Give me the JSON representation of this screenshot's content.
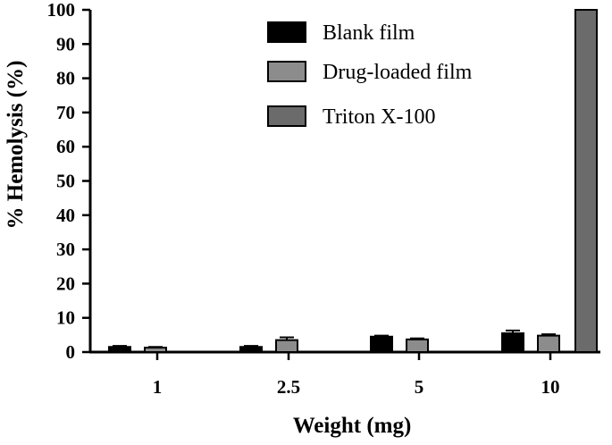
{
  "chart_data": {
    "type": "bar",
    "title": "",
    "xlabel": "Weight (mg)",
    "ylabel": "% Hemolysis (%)",
    "ylim": [
      0,
      100
    ],
    "yticks": [
      0,
      10,
      20,
      30,
      40,
      50,
      60,
      70,
      80,
      90,
      100
    ],
    "categories": [
      "1",
      "2.5",
      "5",
      "10"
    ],
    "grid": false,
    "legend_position": "top-center",
    "series": [
      {
        "name": "Blank film",
        "color": "#000000",
        "values": [
          1.5,
          1.5,
          4.5,
          5.5
        ],
        "errors": [
          0.3,
          0.3,
          0.3,
          0.8
        ]
      },
      {
        "name": "Drug-loaded film",
        "color": "#8c8c8c",
        "values": [
          1.3,
          3.5,
          3.7,
          4.8
        ],
        "errors": [
          0.2,
          0.8,
          0.3,
          0.4
        ]
      },
      {
        "name": "Triton X-100",
        "color": "#6b6b6b",
        "values": [
          null,
          null,
          null,
          100
        ],
        "errors": [
          null,
          null,
          null,
          0
        ]
      }
    ]
  }
}
